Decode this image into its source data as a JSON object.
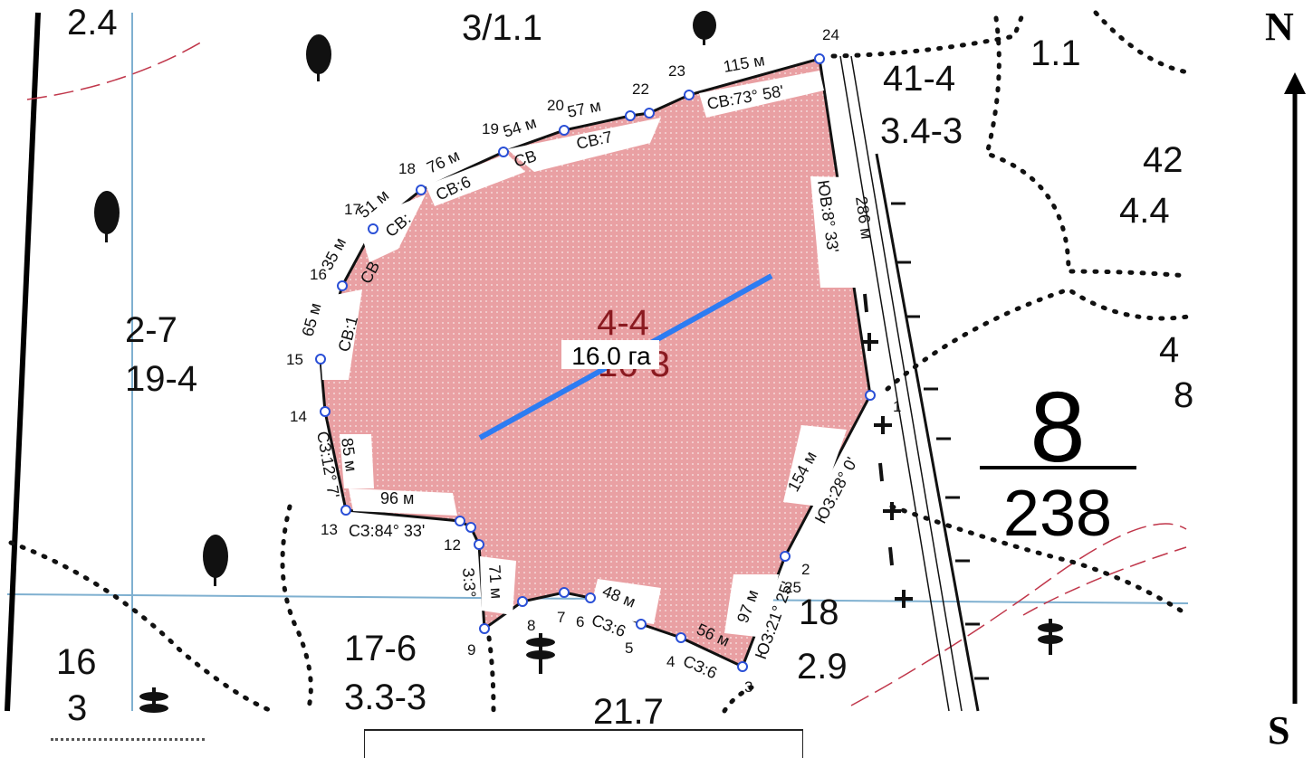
{
  "compass": {
    "north": "N",
    "south": "S"
  },
  "parcel": {
    "area": "16.0 га",
    "id_top": "4-4",
    "id_bottom": "16-3"
  },
  "quarter": {
    "number": "8",
    "area": "238"
  },
  "compartments": [
    {
      "top": "2-7",
      "bottom": "19-4"
    },
    {
      "top": "41-4",
      "bottom": "3.4-3"
    },
    {
      "top": "17-6",
      "bottom": "3.3-3"
    },
    {
      "top": "18",
      "bottom": "2.9"
    },
    {
      "top": "16",
      "bottom": "3"
    },
    {
      "top": "42",
      "bottom": "4.4"
    },
    {
      "top": "4",
      "bottom": "8"
    }
  ],
  "fragments": [
    "2.4",
    "3/1.1",
    "1.1",
    "21.7"
  ],
  "vertices": [
    "1",
    "2",
    "3",
    "4",
    "5",
    "6",
    "7",
    "8",
    "9",
    "12",
    "13",
    "14",
    "15",
    "16",
    "17",
    "18",
    "19",
    "20",
    "22",
    "23",
    "24",
    "25"
  ],
  "edges": [
    {
      "length": "115 м",
      "bearing": "СВ:73° 58'"
    },
    {
      "length": "286 м",
      "bearing": "ЮВ:8° 33'"
    },
    {
      "length": "154 м",
      "bearing": "ЮЗ:28° 0'"
    },
    {
      "length": "97 м",
      "bearing": "ЮЗ:21° 25'"
    },
    {
      "length": "56 м",
      "bearing": "СЗ:6"
    },
    {
      "length": "48 м",
      "bearing": "СЗ:6"
    },
    {
      "length": "71 м",
      "bearing": "З:3°"
    },
    {
      "length": "96 м",
      "bearing": "СЗ:84° 33'"
    },
    {
      "length": "85 м",
      "bearing": "СЗ:12° 7'"
    },
    {
      "length": "65 м",
      "bearing": "СВ:1"
    },
    {
      "length": "35 м",
      "bearing": "СВ"
    },
    {
      "length": "51 м",
      "bearing": "СВ:"
    },
    {
      "length": "76 м",
      "bearing": "СВ:6"
    },
    {
      "length": "54 м",
      "bearing": "СВ"
    },
    {
      "length": "57 м",
      "bearing": "СВ:7"
    }
  ],
  "colors": {
    "parcel_fill": "#e9a0a3",
    "boundary": "#111111",
    "vertex": "#2a4fd6",
    "axis_line": "#2d7cf2",
    "grid_line": "#7fb0d0"
  }
}
